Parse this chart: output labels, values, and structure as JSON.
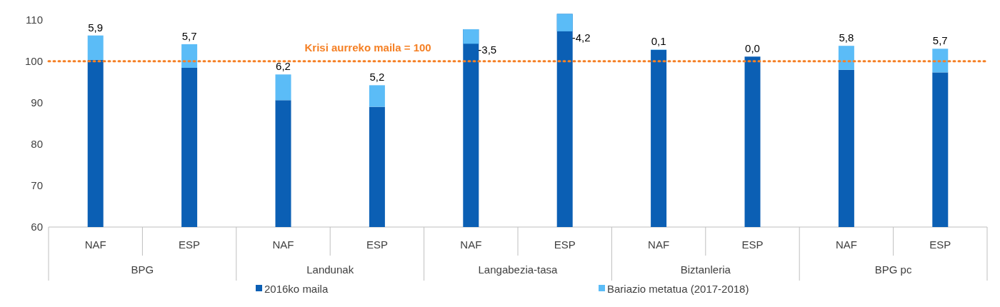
{
  "chart_data": {
    "type": "bar",
    "stacked": true,
    "categories": [
      "NAF",
      "ESP",
      "NAF",
      "ESP",
      "NAF",
      "ESP",
      "NAF",
      "ESP",
      "NAF",
      "ESP"
    ],
    "series": [
      {
        "name": "2016ko maila",
        "color": "#0b5fb4",
        "values": [
          100.3,
          98.4,
          90.6,
          89.0,
          107.7,
          111.4,
          102.7,
          101.1,
          97.9,
          97.3
        ]
      },
      {
        "name": "Bariazio metatua (2017-2018)",
        "color": "#5bbcf7",
        "values": [
          5.9,
          5.7,
          6.2,
          5.2,
          -3.5,
          -4.2,
          0.1,
          0.0,
          5.8,
          5.7
        ],
        "base": [
          100.3,
          98.4,
          90.6,
          89.0,
          107.7,
          111.4,
          102.7,
          null,
          97.9,
          97.3
        ],
        "value_labels": [
          "5,9",
          "5,7",
          "6,2",
          "5,2",
          "-3,5",
          "-4,2",
          "0,1",
          "0,0",
          "5,8",
          "5,7"
        ]
      }
    ],
    "annotations": [
      "BPG",
      "Landunak",
      "Langabezia-tasa",
      "Biztanleria",
      "BPG pc"
    ],
    "ylim": [
      60,
      112
    ],
    "yticks": [
      60,
      70,
      80,
      90,
      100,
      110
    ],
    "ref_lines": [
      {
        "axis": "y",
        "value": 100,
        "label": "Krisi aurreko maila = 100",
        "color": "#f58025",
        "line_style": "dotted"
      }
    ],
    "grid": false,
    "legend": "bottom"
  }
}
